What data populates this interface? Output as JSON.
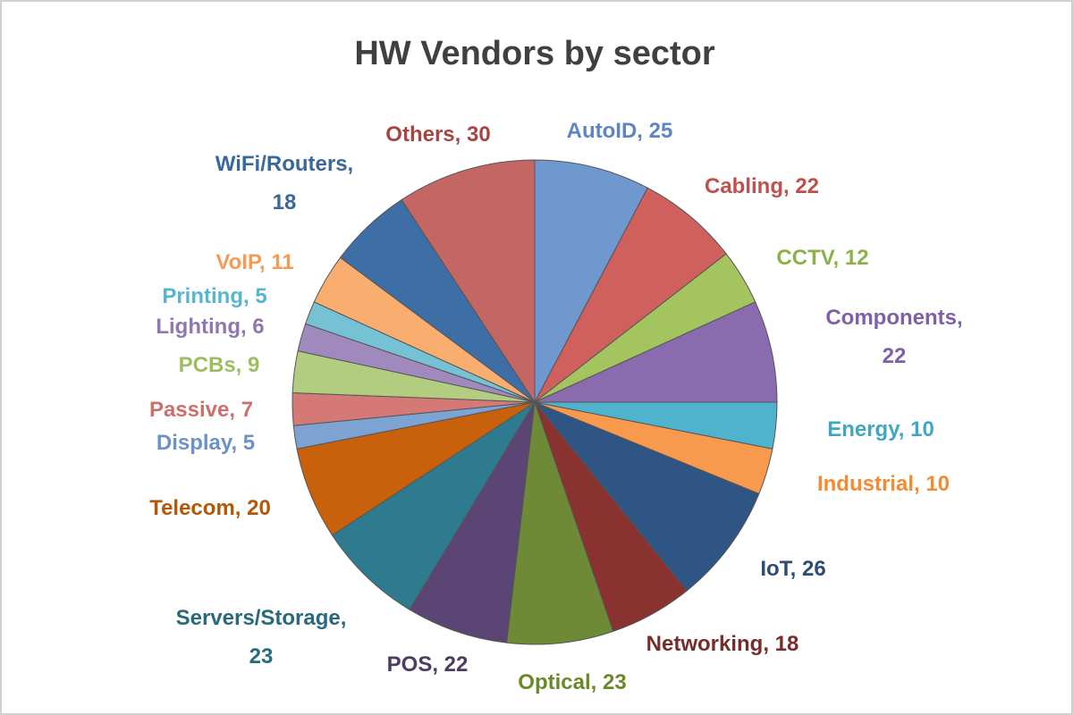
{
  "chart_data": {
    "type": "pie",
    "title": "HW Vendors by sector",
    "categories": [
      "AutoID",
      "Cabling",
      "CCTV",
      "Components",
      "Energy",
      "Industrial",
      "IoT",
      "Networking",
      "Optical",
      "POS",
      "Servers/Storage",
      "Telecom",
      "Display",
      "Passive",
      "PCBs",
      "Lighting",
      "Printing",
      "VoIP",
      "WiFi/Routers",
      "Others"
    ],
    "values": [
      25,
      22,
      12,
      22,
      10,
      10,
      26,
      18,
      23,
      22,
      23,
      20,
      5,
      7,
      9,
      6,
      5,
      11,
      18,
      30
    ],
    "value_labels": [
      [
        "AutoID, 25"
      ],
      [
        "Cabling, 22"
      ],
      [
        "CCTV, 12"
      ],
      [
        "Components,",
        "22"
      ],
      [
        "Energy, 10"
      ],
      [
        "Industrial, 10"
      ],
      [
        "IoT, 26"
      ],
      [
        "Networking, 18"
      ],
      [
        "Optical, 23"
      ],
      [
        "POS, 22"
      ],
      [
        "Servers/Storage,",
        "23"
      ],
      [
        "Telecom, 20"
      ],
      [
        "Display, 5"
      ],
      [
        "Passive, 7"
      ],
      [
        "PCBs, 9"
      ],
      [
        "Lighting, 6"
      ],
      [
        "Printing, 5"
      ],
      [
        "VoIP, 11"
      ],
      [
        "WiFi/Routers,",
        "18"
      ],
      [
        "Others, 30"
      ]
    ],
    "colors": [
      "#6f98cf",
      "#cf605d",
      "#a3c45f",
      "#8a6bb0",
      "#4fb3cd",
      "#f79a4e",
      "#2f5585",
      "#8a3230",
      "#6e8a36",
      "#5a4575",
      "#2e7a8e",
      "#c8600c",
      "#7da3d2",
      "#d57977",
      "#b3cd80",
      "#a08abd",
      "#76c2d5",
      "#f9ae70",
      "#3e6ea6",
      "#c46664"
    ],
    "label_colors": [
      "#5b86c0",
      "#c0504d",
      "#8db14a",
      "#7f60a8",
      "#3fa7c3",
      "#f58a32",
      "#2c4d75",
      "#772c2a",
      "#6a8a2a",
      "#4d3b62",
      "#276a7c",
      "#b65708",
      "#6b93c8",
      "#cd6f6c",
      "#9ebd5f",
      "#8f78b0",
      "#55b7cf",
      "#f79a55",
      "#3a679c",
      "#a84442"
    ]
  }
}
